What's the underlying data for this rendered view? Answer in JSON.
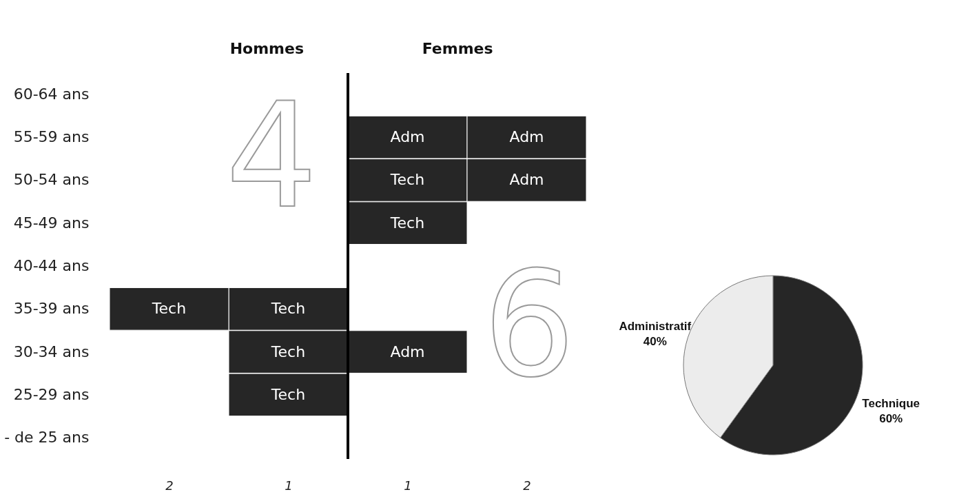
{
  "chart_data": [
    {
      "type": "bar",
      "orientation": "horizontal",
      "stacked": true,
      "categories": [
        "60-64 ans",
        "55-59 ans",
        "50-54 ans",
        "45-49 ans",
        "40-44 ans",
        "35-39 ans",
        "30-34 ans",
        "25-29 ans",
        "- de 25 ans"
      ],
      "series": [
        {
          "color": "#262626",
          "values": [
            null,
            null,
            null,
            null,
            null,
            -1,
            -1,
            -1,
            null
          ],
          "value_labels": [
            null,
            null,
            null,
            null,
            null,
            "Tech",
            "Tech",
            "Tech",
            null
          ]
        },
        {
          "color": "#262626",
          "values": [
            null,
            null,
            null,
            null,
            null,
            -1,
            null,
            null,
            null
          ],
          "value_labels": [
            null,
            null,
            null,
            null,
            null,
            "Tech",
            null,
            null,
            null
          ]
        },
        {
          "color": "#262626",
          "values": [
            null,
            1,
            1,
            1,
            null,
            null,
            1,
            null,
            null
          ],
          "value_labels": [
            null,
            "Adm",
            "Tech",
            "Tech",
            null,
            null,
            "Adm",
            null,
            null
          ]
        },
        {
          "color": "#262626",
          "values": [
            null,
            1,
            1,
            null,
            null,
            null,
            null,
            null,
            null
          ],
          "value_labels": [
            null,
            "Adm",
            "Adm",
            null,
            null,
            null,
            null,
            null,
            null
          ]
        }
      ],
      "xlim": [
        -2,
        2
      ],
      "xticks": [
        {
          "value": -1.5,
          "label": "2"
        },
        {
          "value": -0.5,
          "label": "1"
        },
        {
          "value": 0.5,
          "label": "1"
        },
        {
          "value": 1.5,
          "label": "2"
        }
      ],
      "ref_lines": [
        {
          "axis": "x",
          "value": 0,
          "color": "#000000"
        }
      ],
      "annotations": [
        "Hommes",
        "Femmes",
        "4",
        "6"
      ],
      "grid": false
    },
    {
      "type": "pie",
      "categories": [
        "Technique",
        "Administratif"
      ],
      "values": [
        60,
        40
      ],
      "colors": [
        "#262626",
        "#ececec"
      ],
      "value_labels": [
        "60%",
        "40%"
      ]
    }
  ]
}
